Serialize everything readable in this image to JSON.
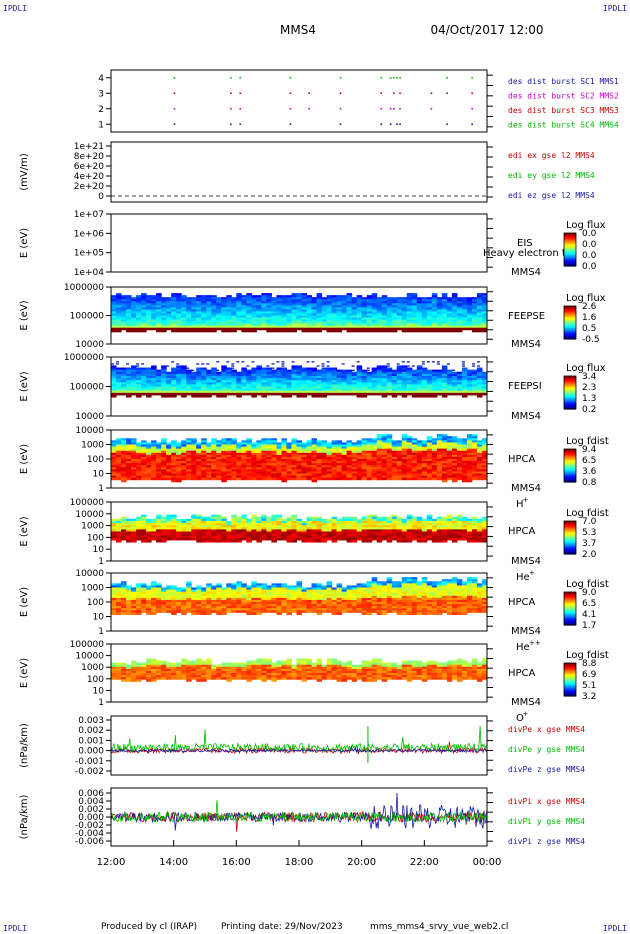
{
  "header": {
    "corner_left_top": "IPDLI",
    "corner_right_top": "IPDLI",
    "corner_left_bottom": "IPDLI",
    "corner_right_bottom": "IPDLI",
    "title": "MMS4",
    "datetime": "04/Oct/2017 12:00"
  },
  "footer": {
    "produced_by": "Produced by cl (IRAP)",
    "printing_date": "Printing date: 29/Nov/2023",
    "filename": "mms_mms4_srvy_vue_web2.cl"
  },
  "chart_data": {
    "type": "stacked-timeseries",
    "time_axis": {
      "ticks": [
        "12:00",
        "14:00",
        "16:00",
        "18:00",
        "20:00",
        "22:00",
        "00:00"
      ]
    },
    "panels": [
      {
        "id": "burst",
        "kind": "burst",
        "ylabel": "",
        "ticks": [
          "4",
          "3",
          "2",
          "1"
        ],
        "ylim": [
          0.5,
          4.5
        ],
        "legend": [
          {
            "label": "des dist burst SC1 MMS1",
            "color": "#1a1aa0"
          },
          {
            "label": "des dist burst SC2 MMS2",
            "color": "#cc00cc"
          },
          {
            "label": "des dist burst SC3 MMS3",
            "color": "#cc0000"
          },
          {
            "label": "des dist burst SC4 MMS4",
            "color": "#00bb00"
          }
        ],
        "bursts_hours": [
          {
            "sc": 4,
            "t": [
              14.0,
              15.8,
              16.1,
              17.7,
              19.3,
              20.6,
              20.9,
              21.0,
              21.1,
              21.2,
              22.7,
              23.5
            ]
          },
          {
            "sc": 3,
            "t": [
              14.0,
              15.8,
              16.1,
              17.7,
              18.3,
              19.3,
              20.6,
              21.0,
              21.2,
              22.2,
              22.7,
              23.5
            ]
          },
          {
            "sc": 2,
            "t": [
              14.0,
              15.8,
              16.1,
              17.7,
              18.3,
              19.3,
              20.6,
              20.9,
              21.0,
              21.2,
              22.2,
              23.5
            ]
          },
          {
            "sc": 1,
            "t": [
              14.0,
              15.8,
              16.1,
              17.7,
              19.3,
              20.6,
              20.9,
              21.1,
              21.2,
              22.7,
              23.5
            ]
          }
        ]
      },
      {
        "id": "edi",
        "kind": "line",
        "ylabel": "(mV/m)",
        "ticks": [
          "1e+21",
          "8e+20",
          "6e+20",
          "4e+20",
          "2e+20",
          "0"
        ],
        "ylim": [
          0,
          1e+21
        ],
        "legend": [
          {
            "label": "edi ex gse l2 MMS4",
            "color": "#cc0000"
          },
          {
            "label": "edi ey gse l2 MMS4",
            "color": "#00bb00"
          },
          {
            "label": "edi ez gse l2 MMS4",
            "color": "#1a1aa0"
          }
        ]
      },
      {
        "id": "eis",
        "kind": "empty-spectro",
        "ylabel": "E (eV)",
        "ticks": [
          "1e+07",
          "1e+06",
          "1e+05",
          "1e+04"
        ],
        "name": "EIS",
        "overlay": "Heavy electron to",
        "sc": "MMS4",
        "cbar": {
          "title": "Log flux",
          "ticks": [
            "0.0",
            "0.0",
            "0.0",
            "0.0"
          ]
        }
      },
      {
        "id": "feepse",
        "kind": "spectro",
        "ylabel": "E (eV)",
        "ticks": [
          "1000000",
          "100000",
          "10000"
        ],
        "name": "FEEPSE",
        "sc": "MMS4",
        "cbar": {
          "title": "Log flux",
          "ticks": [
            "2.6",
            "1.6",
            "0.5",
            "-0.5"
          ]
        }
      },
      {
        "id": "feepsi",
        "kind": "spectro",
        "ylabel": "E (eV)",
        "ticks": [
          "1000000",
          "100000",
          "10000"
        ],
        "name": "FEEPSI",
        "sc": "MMS4",
        "cbar": {
          "title": "Log flux",
          "ticks": [
            "3.4",
            "2.3",
            "1.3",
            "0.2"
          ]
        }
      },
      {
        "id": "hpca_h",
        "kind": "spectro",
        "ylabel": "E (eV)",
        "ticks": [
          "10000",
          "1000",
          "100",
          "10",
          "1"
        ],
        "name": "HPCA",
        "sc": "MMS4",
        "species": "H",
        "species_sup": "+",
        "cbar": {
          "title": "Log fdist",
          "ticks": [
            "9.4",
            "6.5",
            "3.6",
            "0.8"
          ]
        }
      },
      {
        "id": "hpca_he",
        "kind": "spectro",
        "ylabel": "E (eV)",
        "ticks": [
          "100000",
          "10000",
          "1000",
          "100",
          "10",
          "1"
        ],
        "name": "HPCA",
        "sc": "MMS4",
        "species": "He",
        "species_sup": "+",
        "cbar": {
          "title": "Log fdist",
          "ticks": [
            "7.0",
            "5.3",
            "3.7",
            "2.0"
          ]
        }
      },
      {
        "id": "hpca_hepp",
        "kind": "spectro",
        "ylabel": "E (eV)",
        "ticks": [
          "10000",
          "1000",
          "100",
          "10",
          "1"
        ],
        "name": "HPCA",
        "sc": "MMS4",
        "species": "He",
        "species_sup": "++",
        "cbar": {
          "title": "Log fdist",
          "ticks": [
            "9.0",
            "6.5",
            "4.1",
            "1.7"
          ]
        }
      },
      {
        "id": "hpca_o",
        "kind": "spectro",
        "ylabel": "E (eV)",
        "ticks": [
          "100000",
          "10000",
          "1000",
          "100",
          "10",
          "1"
        ],
        "name": "HPCA",
        "sc": "MMS4",
        "species": "O",
        "species_sup": "+",
        "cbar": {
          "title": "Log fdist",
          "ticks": [
            "8.8",
            "6.9",
            "5.1",
            "3.2"
          ]
        }
      },
      {
        "id": "divpe",
        "kind": "line",
        "ylabel": "(nPa/km)",
        "ticks": [
          "0.003",
          "0.002",
          "0.001",
          "0.000",
          "-0.001",
          "-0.002"
        ],
        "ylim": [
          -0.002,
          0.003
        ],
        "legend": [
          {
            "label": "divPe x gse MMS4",
            "color": "#cc0000"
          },
          {
            "label": "divPe y gse MMS4",
            "color": "#00bb00"
          },
          {
            "label": "divPe z gse MMS4",
            "color": "#1a1aa0"
          }
        ]
      },
      {
        "id": "divpi",
        "kind": "line",
        "ylabel": "(nPa/km)",
        "ticks": [
          "0.006",
          "0.004",
          "0.002",
          "0.000",
          "-0.002",
          "-0.004",
          "-0.006"
        ],
        "ylim": [
          -0.006,
          0.006
        ],
        "legend": [
          {
            "label": "divPi x gse MMS4",
            "color": "#cc0000"
          },
          {
            "label": "divPi y gse MMS4",
            "color": "#00bb00"
          },
          {
            "label": "divPi z gse MMS4",
            "color": "#1a1aa0"
          }
        ]
      }
    ]
  }
}
